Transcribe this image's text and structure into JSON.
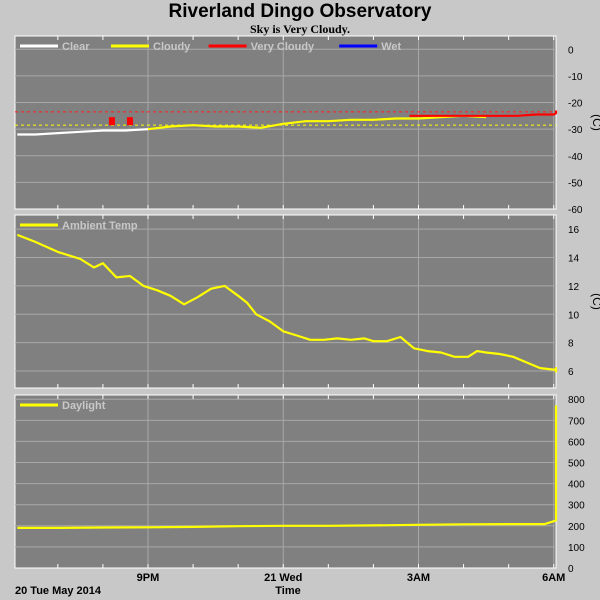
{
  "header": {
    "title": "Riverland Dingo Observatory",
    "subtitle": "Sky is Very Cloudy."
  },
  "footer": {
    "date_label": "20 Tue May 2014",
    "x_axis_label": "Time"
  },
  "chart_data": [
    {
      "type": "line",
      "panel": "sky",
      "ylabel": "(C)",
      "ylim": [
        -60,
        5
      ],
      "yticks": [
        0,
        -10,
        -20,
        -30,
        -40,
        -50,
        -60
      ],
      "xlim": [
        18.05,
        30.05
      ],
      "xticks": [
        {
          "x": 21,
          "label": "9PM"
        },
        {
          "x": 24,
          "label": "21 Wed"
        },
        {
          "x": 27,
          "label": "3AM"
        },
        {
          "x": 30,
          "label": "6AM"
        }
      ],
      "grid": true,
      "legend": "top-left",
      "thresholds": [
        {
          "y": -23.5,
          "color": "#ff2020"
        },
        {
          "y": -28.5,
          "color": "#ffff00"
        }
      ],
      "series": [
        {
          "name": "Clear",
          "color": "#ffffff",
          "x": [
            18.1,
            18.5,
            19.0,
            19.5,
            20.0,
            20.5,
            21.0
          ],
          "y": [
            -32,
            -32,
            -31.5,
            -31,
            -30.5,
            -30.5,
            -30
          ]
        },
        {
          "name": "Cloudy",
          "color": "#ffff00",
          "x": [
            21.0,
            21.5,
            22.0,
            22.5,
            23.0,
            23.5,
            24.0,
            24.5,
            25.0,
            25.5,
            26.0,
            26.5,
            27.0,
            27.5,
            28.0,
            28.5
          ],
          "y": [
            -30,
            -29,
            -28.5,
            -29,
            -29,
            -29.5,
            -28,
            -27,
            -27,
            -26.5,
            -26.5,
            -26,
            -26,
            -25.5,
            -25,
            -25.5
          ]
        },
        {
          "name": "Very Cloudy",
          "color": "#ff0000",
          "x": [
            26.8,
            27.2,
            27.6,
            28.0,
            28.4,
            28.8,
            29.2,
            29.6,
            30.0,
            30.4,
            30.8,
            31.0
          ],
          "y": [
            -25,
            -25,
            -25,
            -25,
            -25,
            -25,
            -25,
            -24.5,
            -24.5,
            -24,
            -23.5,
            -23
          ]
        },
        {
          "name": "Wet",
          "color": "#0000ff",
          "x": [],
          "y": []
        }
      ],
      "markers": [
        {
          "name": "Very Cloudy",
          "x": [
            20.2,
            20.6
          ],
          "y": [
            -27,
            -27
          ]
        }
      ]
    },
    {
      "type": "line",
      "panel": "ambient",
      "ylabel": "(C)",
      "ylim": [
        4.8,
        17
      ],
      "yticks": [
        16,
        14,
        12,
        10,
        8,
        6
      ],
      "grid": true,
      "legend": "top-left",
      "series": [
        {
          "name": "Ambient Temp",
          "color": "#ffff00",
          "x": [
            18.1,
            18.5,
            19.0,
            19.5,
            19.8,
            20.0,
            20.3,
            20.6,
            20.9,
            21.2,
            21.5,
            21.8,
            22.1,
            22.4,
            22.7,
            23.0,
            23.2,
            23.4,
            23.7,
            24.0,
            24.3,
            24.6,
            24.9,
            25.2,
            25.5,
            25.8,
            26.0,
            26.3,
            26.6,
            26.9,
            27.2,
            27.5,
            27.8,
            28.1,
            28.3,
            28.5,
            28.8,
            29.1,
            29.4,
            29.7,
            30.0,
            30.3,
            30.6,
            30.8,
            31.0
          ],
          "y": [
            15.6,
            15.1,
            14.4,
            13.9,
            13.3,
            13.6,
            12.6,
            12.7,
            12.0,
            11.7,
            11.3,
            10.7,
            11.2,
            11.8,
            12.0,
            11.3,
            10.8,
            10.0,
            9.5,
            8.8,
            8.5,
            8.2,
            8.2,
            8.3,
            8.2,
            8.3,
            8.1,
            8.1,
            8.4,
            7.6,
            7.4,
            7.3,
            7.0,
            7.0,
            7.4,
            7.3,
            7.2,
            7.0,
            6.6,
            6.2,
            6.1,
            6.1,
            6.2,
            6.0,
            5.9
          ]
        }
      ]
    },
    {
      "type": "line",
      "panel": "daylight",
      "ylabel": "",
      "ylim": [
        0,
        820
      ],
      "yticks": [
        800,
        700,
        600,
        500,
        400,
        300,
        200,
        100,
        0
      ],
      "grid": true,
      "legend": "top-left",
      "series": [
        {
          "name": "Daylight",
          "color": "#ffff00",
          "x": [
            18.1,
            19.0,
            20.0,
            21.0,
            22.0,
            23.0,
            24.0,
            25.0,
            26.0,
            27.0,
            28.0,
            29.0,
            29.8,
            30.2,
            30.3,
            30.4,
            30.5,
            30.7,
            30.9,
            31.0
          ],
          "y": [
            190,
            190,
            192,
            193,
            195,
            198,
            200,
            200,
            202,
            205,
            207,
            208,
            208,
            225,
            420,
            560,
            640,
            700,
            745,
            770
          ]
        }
      ]
    }
  ]
}
